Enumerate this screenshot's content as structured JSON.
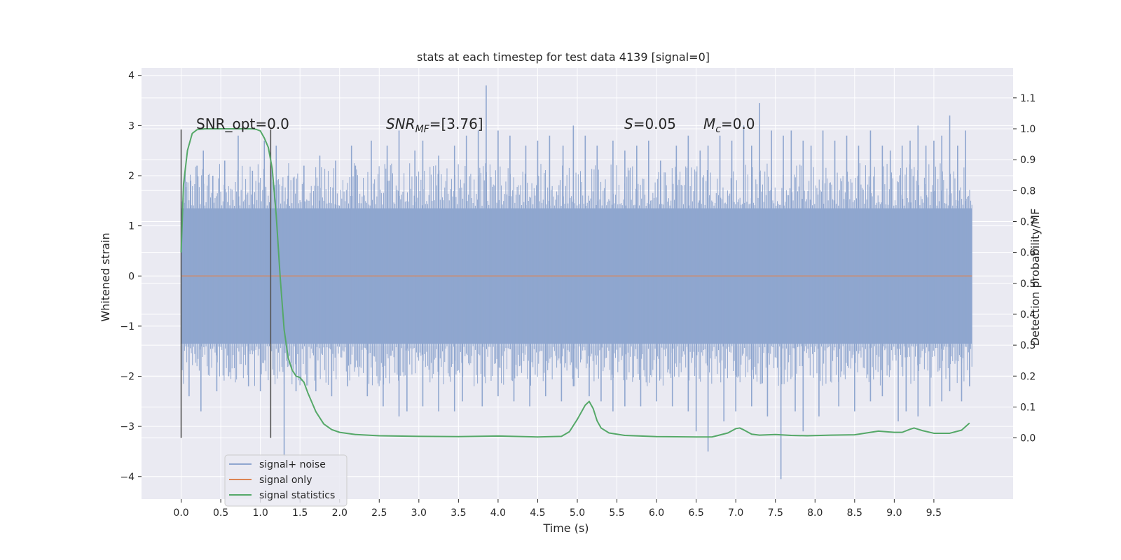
{
  "chart_data": {
    "type": "line",
    "title": "stats at each timestep for test data 4139 [signal=0]",
    "xlabel": "Time (s)",
    "ylabel": "Whitened strain",
    "y2label": "Detection probability/MF",
    "xlim": [
      -0.5,
      10.5
    ],
    "ylim": [
      -4.45,
      4.15
    ],
    "y2lim": [
      -0.198,
      1.197
    ],
    "x_ticks": [
      "0.0",
      "0.5",
      "1.0",
      "1.5",
      "2.0",
      "2.5",
      "3.0",
      "3.5",
      "4.0",
      "4.5",
      "5.0",
      "5.5",
      "6.0",
      "6.5",
      "7.0",
      "7.5",
      "8.0",
      "8.5",
      "9.0",
      "9.5"
    ],
    "y_ticks": [
      "4",
      "3",
      "2",
      "1",
      "0",
      "−1",
      "−2",
      "−3",
      "−4"
    ],
    "y2_ticks": [
      "1.1",
      "1.0",
      "0.9",
      "0.8",
      "0.7",
      "0.6",
      "0.5",
      "0.4",
      "0.3",
      "0.2",
      "0.1",
      "0.0"
    ],
    "grid": true,
    "legend_position": "lower-left",
    "colors": {
      "background": "#eaeaf2",
      "grid": "#ffffff",
      "noise": "#8fa6cf",
      "signal": "#dd8452",
      "stats": "#55a868",
      "vline": "#555555"
    },
    "annotations": {
      "snr_opt": "SNR_opt=0.0",
      "snr_mf_symbol": "SNR",
      "snr_mf_sub": "MF",
      "snr_mf_value": "=[3.76]",
      "s_symbol": "S",
      "s_value": "=0.05",
      "mc_symbol": "M",
      "mc_sub": "c",
      "mc_value": "=0.0"
    },
    "vertical_lines_x": [
      0.0,
      1.13
    ],
    "series": [
      {
        "name": "signal+ noise",
        "axis": "left",
        "t_start": 0.0,
        "t_end": 9.98,
        "envelope_upper": 1.35,
        "envelope_lower": -1.35,
        "spikes": [
          [
            0.05,
            2.1
          ],
          [
            0.12,
            1.9
          ],
          [
            0.2,
            2.2
          ],
          [
            0.28,
            2.5
          ],
          [
            0.4,
            2.0
          ],
          [
            0.55,
            2.3
          ],
          [
            0.72,
            2.8
          ],
          [
            0.9,
            2.1
          ],
          [
            1.05,
            2.7
          ],
          [
            1.2,
            2.6
          ],
          [
            1.35,
            2.0
          ],
          [
            1.55,
            2.2
          ],
          [
            1.75,
            2.4
          ],
          [
            1.95,
            2.3
          ],
          [
            2.15,
            2.6
          ],
          [
            2.2,
            2.2
          ],
          [
            2.4,
            2.7
          ],
          [
            2.6,
            2.6
          ],
          [
            2.75,
            2.9
          ],
          [
            2.95,
            2.5
          ],
          [
            3.05,
            2.7
          ],
          [
            3.25,
            2.4
          ],
          [
            3.45,
            2.6
          ],
          [
            3.6,
            2.8
          ],
          [
            3.75,
            2.9
          ],
          [
            3.85,
            3.8
          ],
          [
            4.0,
            2.9
          ],
          [
            4.15,
            2.8
          ],
          [
            4.35,
            2.6
          ],
          [
            4.5,
            2.7
          ],
          [
            4.65,
            2.8
          ],
          [
            4.82,
            2.6
          ],
          [
            4.95,
            3.0
          ],
          [
            5.1,
            2.8
          ],
          [
            5.25,
            2.6
          ],
          [
            5.45,
            2.7
          ],
          [
            5.6,
            2.5
          ],
          [
            5.75,
            2.6
          ],
          [
            5.9,
            2.7
          ],
          [
            6.05,
            2.3
          ],
          [
            6.25,
            2.6
          ],
          [
            6.4,
            2.8
          ],
          [
            6.55,
            2.5
          ],
          [
            6.65,
            2.6
          ],
          [
            6.8,
            2.8
          ],
          [
            6.95,
            2.7
          ],
          [
            7.1,
            3.0
          ],
          [
            7.2,
            2.6
          ],
          [
            7.3,
            3.45
          ],
          [
            7.45,
            2.9
          ],
          [
            7.6,
            2.8
          ],
          [
            7.7,
            2.9
          ],
          [
            7.85,
            2.7
          ],
          [
            7.95,
            2.6
          ],
          [
            8.1,
            2.9
          ],
          [
            8.25,
            2.7
          ],
          [
            8.4,
            2.8
          ],
          [
            8.55,
            2.6
          ],
          [
            8.7,
            2.9
          ],
          [
            8.85,
            2.6
          ],
          [
            8.95,
            2.5
          ],
          [
            9.1,
            2.6
          ],
          [
            9.2,
            2.7
          ],
          [
            9.3,
            3.0
          ],
          [
            9.4,
            2.6
          ],
          [
            9.5,
            2.7
          ],
          [
            9.6,
            2.8
          ],
          [
            9.7,
            3.2
          ],
          [
            9.8,
            2.6
          ],
          [
            9.9,
            2.9
          ],
          [
            0.1,
            -2.4
          ],
          [
            0.25,
            -2.7
          ],
          [
            0.45,
            -2.3
          ],
          [
            0.6,
            -2.0
          ],
          [
            0.85,
            -2.2
          ],
          [
            1.0,
            -2.3
          ],
          [
            1.3,
            -3.6
          ],
          [
            1.45,
            -2.3
          ],
          [
            1.7,
            -2.3
          ],
          [
            1.9,
            -2.4
          ],
          [
            2.1,
            -2.2
          ],
          [
            2.35,
            -2.4
          ],
          [
            2.55,
            -2.6
          ],
          [
            2.75,
            -2.8
          ],
          [
            2.85,
            -2.7
          ],
          [
            3.05,
            -2.6
          ],
          [
            3.25,
            -2.7
          ],
          [
            3.45,
            -2.7
          ],
          [
            3.55,
            -2.5
          ],
          [
            3.8,
            -2.6
          ],
          [
            4.0,
            -2.4
          ],
          [
            4.2,
            -2.5
          ],
          [
            4.4,
            -2.6
          ],
          [
            4.6,
            -2.4
          ],
          [
            4.8,
            -2.5
          ],
          [
            4.95,
            -2.2
          ],
          [
            5.15,
            -2.4
          ],
          [
            5.3,
            -2.5
          ],
          [
            5.45,
            -2.7
          ],
          [
            5.6,
            -2.6
          ],
          [
            5.8,
            -2.6
          ],
          [
            6.0,
            -2.5
          ],
          [
            6.2,
            -2.6
          ],
          [
            6.4,
            -2.7
          ],
          [
            6.5,
            -3.1
          ],
          [
            6.65,
            -3.5
          ],
          [
            6.85,
            -2.9
          ],
          [
            7.0,
            -2.7
          ],
          [
            7.2,
            -2.6
          ],
          [
            7.4,
            -2.8
          ],
          [
            7.57,
            -4.05
          ],
          [
            7.75,
            -2.7
          ],
          [
            7.85,
            -3.1
          ],
          [
            8.05,
            -2.8
          ],
          [
            8.3,
            -2.6
          ],
          [
            8.5,
            -2.7
          ],
          [
            8.7,
            -2.5
          ],
          [
            8.85,
            -2.4
          ],
          [
            9.05,
            -2.9
          ],
          [
            9.15,
            -2.7
          ],
          [
            9.3,
            -2.8
          ],
          [
            9.45,
            -2.6
          ],
          [
            9.6,
            -2.5
          ],
          [
            9.7,
            -2.3
          ],
          [
            9.85,
            -2.5
          ],
          [
            9.95,
            -2.2
          ]
        ]
      },
      {
        "name": "signal only",
        "axis": "left",
        "x": [
          0.0,
          9.98
        ],
        "y": [
          0.0,
          0.0
        ]
      },
      {
        "name": "signal statistics",
        "axis": "right",
        "x": [
          0.0,
          0.03,
          0.08,
          0.14,
          0.2,
          0.3,
          0.4,
          0.5,
          0.6,
          0.7,
          0.8,
          0.9,
          0.95,
          1.0,
          1.05,
          1.1,
          1.15,
          1.2,
          1.25,
          1.3,
          1.35,
          1.4,
          1.45,
          1.5,
          1.55,
          1.6,
          1.7,
          1.8,
          1.9,
          2.0,
          2.2,
          2.5,
          3.0,
          3.5,
          4.0,
          4.5,
          4.8,
          4.9,
          5.0,
          5.1,
          5.15,
          5.2,
          5.25,
          5.3,
          5.4,
          5.6,
          6.0,
          6.5,
          6.7,
          6.9,
          7.0,
          7.05,
          7.1,
          7.2,
          7.3,
          7.5,
          7.7,
          7.9,
          8.2,
          8.5,
          8.8,
          9.0,
          9.1,
          9.2,
          9.25,
          9.35,
          9.5,
          9.7,
          9.85,
          9.95
        ],
        "y": [
          0.6,
          0.82,
          0.93,
          0.985,
          0.997,
          1.0,
          1.0,
          1.0,
          1.0,
          1.0,
          1.0,
          1.0,
          0.998,
          0.993,
          0.97,
          0.94,
          0.87,
          0.72,
          0.52,
          0.35,
          0.26,
          0.22,
          0.2,
          0.195,
          0.18,
          0.145,
          0.085,
          0.045,
          0.027,
          0.018,
          0.011,
          0.007,
          0.005,
          0.004,
          0.006,
          0.003,
          0.005,
          0.02,
          0.06,
          0.106,
          0.118,
          0.095,
          0.055,
          0.032,
          0.016,
          0.008,
          0.004,
          0.003,
          0.003,
          0.016,
          0.03,
          0.032,
          0.026,
          0.012,
          0.009,
          0.011,
          0.008,
          0.007,
          0.009,
          0.01,
          0.022,
          0.018,
          0.018,
          0.028,
          0.032,
          0.024,
          0.015,
          0.015,
          0.025,
          0.048
        ]
      }
    ]
  }
}
